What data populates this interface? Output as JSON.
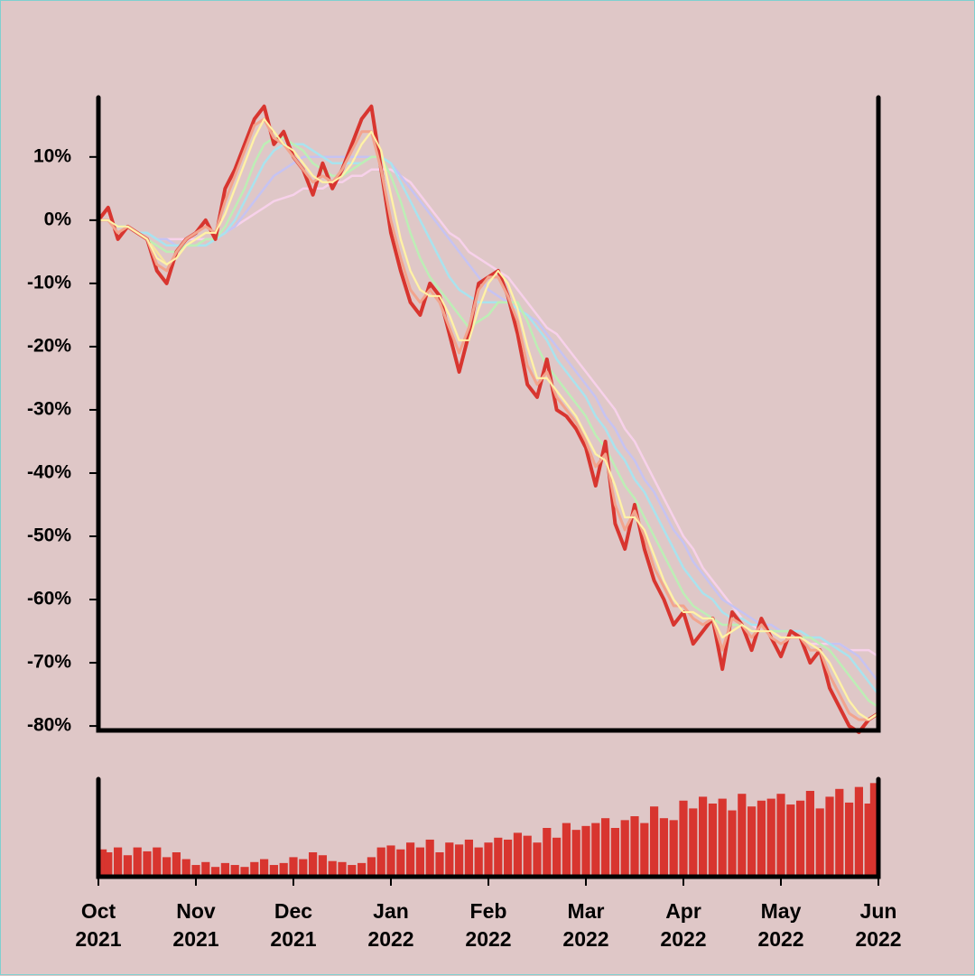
{
  "chart_data": [
    {
      "type": "line",
      "ylim": [
        -80.7,
        19.4
      ],
      "yticks": [
        {
          "value": -80,
          "label": "-80%"
        },
        {
          "value": -70,
          "label": "-70%"
        },
        {
          "value": -60,
          "label": "-60%"
        },
        {
          "value": -50,
          "label": "-50%"
        },
        {
          "value": -40,
          "label": "-40%"
        },
        {
          "value": -30,
          "label": "-30%"
        },
        {
          "value": -20,
          "label": "-20%"
        },
        {
          "value": -10,
          "label": "-10%"
        },
        {
          "value": 0,
          "label": "0%"
        },
        {
          "value": 10,
          "label": "10%"
        }
      ],
      "series": [
        {
          "color": "#f5e3a0",
          "width": 2.5,
          "values": [
            0,
            0,
            -1,
            -1,
            -2,
            -3,
            -5,
            -7,
            -6,
            -4,
            -3,
            -2,
            -2,
            1,
            5,
            9,
            13,
            16,
            14,
            12,
            11,
            9,
            7,
            6,
            6,
            7,
            9,
            12,
            14,
            11,
            4,
            -3,
            -8,
            -11,
            -12,
            -12,
            -15,
            -19,
            -19,
            -14,
            -10,
            -8,
            -10,
            -14,
            -20,
            -25,
            -25,
            -27,
            -29,
            -31,
            -34,
            -37,
            -38,
            -42,
            -47,
            -47,
            -49,
            -53,
            -57,
            -60,
            -62,
            -62,
            -63,
            -63,
            -66,
            -65,
            -64,
            -65,
            -65,
            -65,
            -66,
            -66,
            -66,
            -67,
            -68,
            -70,
            -73,
            -76,
            -78,
            -79,
            -78
          ]
        },
        {
          "color": "#f7d1ea",
          "width": 2.5,
          "values": [
            0,
            0,
            -1,
            -1,
            -2,
            -2,
            -3,
            -3,
            -3,
            -3,
            -3,
            -3,
            -3,
            -2,
            -1,
            0,
            1,
            2,
            3,
            3.5,
            4,
            5,
            5,
            5,
            6,
            6,
            7,
            7,
            8,
            8,
            8,
            7,
            6,
            4,
            2,
            0,
            -2,
            -3,
            -5,
            -6,
            -7,
            -8,
            -9,
            -11,
            -13,
            -15,
            -17,
            -18,
            -20,
            -22,
            -24,
            -26,
            -28,
            -30,
            -33,
            -35,
            -38,
            -41,
            -44,
            -47,
            -50,
            -52,
            -55,
            -57,
            -59,
            -61,
            -63,
            -64,
            -65,
            -65,
            -66,
            -66,
            -66,
            -67,
            -67,
            -67,
            -67,
            -68,
            -68,
            -68,
            -69
          ]
        },
        {
          "color": "#c6c3f2",
          "width": 2.5,
          "values": [
            0,
            0,
            -1,
            -1,
            -2,
            -2,
            -3,
            -3,
            -4,
            -4,
            -4,
            -4,
            -3,
            -2,
            -1,
            1,
            3,
            5,
            7,
            8,
            9,
            10,
            10,
            10,
            10,
            10,
            10,
            10,
            10,
            10,
            9,
            7,
            5,
            3,
            1,
            -1,
            -3,
            -5,
            -7,
            -9,
            -11,
            -12,
            -13,
            -14,
            -15,
            -16,
            -18,
            -20,
            -22,
            -24,
            -26,
            -28,
            -31,
            -33,
            -36,
            -38,
            -41,
            -43,
            -46,
            -49,
            -51,
            -54,
            -56,
            -58,
            -60,
            -61,
            -62,
            -63,
            -64,
            -64,
            -65,
            -65,
            -65,
            -66,
            -66,
            -67,
            -67,
            -68,
            -69,
            -71,
            -73
          ]
        },
        {
          "color": "#a9e3ee",
          "width": 2.5,
          "values": [
            0,
            0,
            -1,
            -1,
            -2,
            -2,
            -3,
            -4,
            -4,
            -4,
            -4,
            -4,
            -3,
            -2,
            0,
            3,
            6,
            9,
            11,
            12,
            12,
            12,
            11,
            10,
            9,
            9,
            9,
            9,
            10,
            10,
            9,
            6,
            3,
            0,
            -3,
            -6,
            -9,
            -11,
            -12,
            -13,
            -13,
            -13,
            -13,
            -14,
            -15,
            -17,
            -19,
            -22,
            -24,
            -26,
            -28,
            -31,
            -33,
            -36,
            -38,
            -41,
            -43,
            -46,
            -49,
            -52,
            -55,
            -57,
            -59,
            -60,
            -62,
            -63,
            -63,
            -64,
            -64,
            -65,
            -65,
            -65,
            -65,
            -66,
            -66,
            -67,
            -68,
            -69,
            -71,
            -73,
            -75
          ]
        },
        {
          "color": "#bdeeb5",
          "width": 2.5,
          "values": [
            0,
            0,
            -1,
            -1,
            -2,
            -3,
            -4,
            -5,
            -5,
            -4,
            -4,
            -3,
            -3,
            -1,
            2,
            5,
            9,
            12,
            13,
            13,
            12,
            11,
            9,
            8,
            7,
            7,
            8,
            9,
            10,
            10,
            7,
            3,
            -2,
            -6,
            -9,
            -11,
            -13,
            -15,
            -17,
            -16,
            -15,
            -13,
            -13,
            -13,
            -16,
            -20,
            -23,
            -25,
            -27,
            -29,
            -31,
            -34,
            -36,
            -39,
            -42,
            -44,
            -47,
            -50,
            -53,
            -56,
            -59,
            -61,
            -62,
            -63,
            -64,
            -64,
            -64,
            -65,
            -65,
            -65,
            -65,
            -65,
            -66,
            -66,
            -67,
            -68,
            -70,
            -72,
            -74,
            -76,
            -77
          ]
        },
        {
          "color": "#d8352f",
          "width": 4,
          "values": [
            0,
            2,
            -3,
            -1,
            -2,
            -3,
            -8,
            -10,
            -5,
            -3,
            -2,
            0,
            -3,
            5,
            8,
            12,
            16,
            18,
            12,
            14,
            10,
            8,
            4,
            9,
            5,
            8,
            12,
            16,
            18,
            8,
            -2,
            -8,
            -13,
            -15,
            -10,
            -12,
            -18,
            -24,
            -18,
            -10,
            -9,
            -8,
            -12,
            -18,
            -26,
            -28,
            -22,
            -30,
            -31,
            -33,
            -36,
            -42,
            -35,
            -48,
            -52,
            -45,
            -52,
            -57,
            -60,
            -64,
            -62,
            -67,
            -65,
            -63,
            -71,
            -62,
            -64,
            -68,
            -63,
            -66,
            -69,
            -65,
            -66,
            -70,
            -68,
            -74,
            -77,
            -80,
            -81,
            -79,
            -78
          ]
        },
        {
          "color": "#f2a48d",
          "width": 3,
          "values": [
            0,
            0,
            -2,
            -1,
            -2,
            -3,
            -7,
            -8,
            -5,
            -3,
            -2,
            -1,
            -2,
            3,
            7,
            11,
            15,
            16,
            13,
            12,
            10,
            8,
            6,
            7,
            6,
            8,
            11,
            14,
            14,
            8,
            0,
            -6,
            -11,
            -13,
            -11,
            -13,
            -17,
            -21,
            -17,
            -11,
            -9,
            -9,
            -12,
            -16,
            -23,
            -26,
            -24,
            -28,
            -30,
            -32,
            -35,
            -39,
            -37,
            -45,
            -49,
            -46,
            -50,
            -55,
            -58,
            -61,
            -61,
            -63,
            -64,
            -63,
            -68,
            -63,
            -64,
            -66,
            -64,
            -66,
            -67,
            -66,
            -66,
            -68,
            -68,
            -72,
            -75,
            -78,
            -79,
            -79,
            -78
          ]
        },
        {
          "color": "#fff2a8",
          "width": 2,
          "values": [
            0,
            0,
            -1,
            -1,
            -2,
            -3,
            -6,
            -7,
            -6,
            -4,
            -3,
            -2,
            -2,
            1,
            5,
            9,
            13,
            16,
            14,
            12,
            11,
            9,
            7,
            6,
            6,
            7,
            9,
            12,
            14,
            11,
            4,
            -3,
            -8,
            -11,
            -12,
            -12,
            -15,
            -19,
            -19,
            -14,
            -10,
            -8,
            -10,
            -14,
            -20,
            -25,
            -25,
            -27,
            -29,
            -31,
            -34,
            -37,
            -38,
            -42,
            -47,
            -47,
            -49,
            -53,
            -57,
            -60,
            -62,
            -62,
            -63,
            -63,
            -66,
            -65,
            -64,
            -65,
            -65,
            -65,
            -66,
            -66,
            -66,
            -67,
            -68,
            -70,
            -73,
            -76,
            -78,
            -79,
            -78
          ]
        }
      ]
    },
    {
      "type": "bar",
      "color": "#d8352f",
      "ylim": [
        0,
        100
      ],
      "categories": [
        "Oct\n2021",
        null,
        null,
        null,
        null,
        null,
        null,
        null,
        null,
        null,
        "Nov\n2021",
        null,
        null,
        null,
        null,
        null,
        null,
        null,
        null,
        null,
        "Dec\n2021",
        null,
        null,
        null,
        null,
        null,
        null,
        null,
        null,
        null,
        "Jan\n2022",
        null,
        null,
        null,
        null,
        null,
        null,
        null,
        null,
        null,
        "Feb\n2022",
        null,
        null,
        null,
        null,
        null,
        null,
        null,
        null,
        null,
        "Mar\n2022",
        null,
        null,
        null,
        null,
        null,
        null,
        null,
        null,
        null,
        "Apr\n2022",
        null,
        null,
        null,
        null,
        null,
        null,
        null,
        null,
        null,
        "May\n2022",
        null,
        null,
        null,
        null,
        null,
        null,
        null,
        null,
        null,
        "Jun\n2022"
      ],
      "values": [
        28,
        25,
        30,
        22,
        30,
        26,
        30,
        20,
        25,
        18,
        12,
        15,
        10,
        14,
        12,
        10,
        15,
        18,
        12,
        14,
        20,
        18,
        25,
        22,
        16,
        15,
        12,
        14,
        20,
        30,
        32,
        28,
        35,
        30,
        38,
        25,
        35,
        33,
        38,
        30,
        35,
        40,
        38,
        45,
        42,
        35,
        50,
        40,
        55,
        48,
        52,
        55,
        60,
        50,
        58,
        62,
        55,
        72,
        60,
        58,
        78,
        70,
        82,
        75,
        80,
        68,
        85,
        72,
        78,
        80,
        85,
        74,
        78,
        88,
        70,
        82,
        90,
        76,
        92,
        75,
        96
      ]
    }
  ]
}
